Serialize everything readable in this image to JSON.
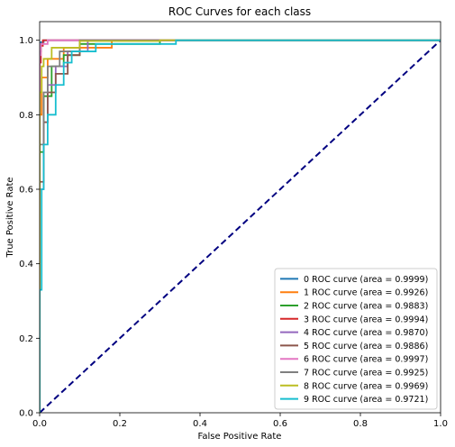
{
  "chart_data": {
    "type": "line",
    "title": "ROC Curves for each class",
    "xlabel": "False Positive Rate",
    "ylabel": "True Positive Rate",
    "xlim": [
      0.0,
      1.0
    ],
    "ylim": [
      0.0,
      1.05
    ],
    "xticks": [
      "0.0",
      "0.2",
      "0.4",
      "0.6",
      "0.8",
      "1.0"
    ],
    "yticks": [
      "0.0",
      "0.2",
      "0.4",
      "0.6",
      "0.8",
      "1.0"
    ],
    "grid": false,
    "legend_position": "lower-right",
    "diagonal": {
      "x": [
        0,
        1
      ],
      "y": [
        0,
        1
      ],
      "color": "#000080",
      "style": "dashed"
    },
    "series": [
      {
        "name": "0 ROC curve (area = 0.9999)",
        "color": "#1f77b4",
        "x": [
          0,
          0,
          0.003,
          0.003,
          0.01,
          0.01,
          1
        ],
        "y": [
          0,
          0.97,
          0.97,
          0.995,
          0.995,
          1.0,
          1.0
        ]
      },
      {
        "name": "1 ROC curve (area = 0.9926)",
        "color": "#ff7f0e",
        "x": [
          0,
          0,
          0.005,
          0.005,
          0.02,
          0.02,
          0.06,
          0.06,
          0.18,
          0.18,
          1
        ],
        "y": [
          0,
          0.8,
          0.8,
          0.9,
          0.9,
          0.95,
          0.95,
          0.98,
          0.98,
          1.0,
          1.0
        ]
      },
      {
        "name": "2 ROC curve (area = 0.9883)",
        "color": "#2ca02c",
        "x": [
          0,
          0,
          0.01,
          0.01,
          0.03,
          0.03,
          0.06,
          0.06,
          0.1,
          0.1,
          0.3,
          0.3,
          1
        ],
        "y": [
          0,
          0.7,
          0.7,
          0.85,
          0.85,
          0.93,
          0.93,
          0.96,
          0.96,
          0.99,
          0.99,
          1.0,
          1.0
        ]
      },
      {
        "name": "3 ROC curve (area = 0.9994)",
        "color": "#d62728",
        "x": [
          0,
          0,
          0.003,
          0.003,
          0.008,
          0.008,
          1
        ],
        "y": [
          0,
          0.94,
          0.94,
          0.985,
          0.985,
          1.0,
          1.0
        ]
      },
      {
        "name": "4 ROC curve (area = 0.9870)",
        "color": "#9467bd",
        "x": [
          0,
          0,
          0.01,
          0.01,
          0.02,
          0.02,
          0.04,
          0.04,
          0.07,
          0.07,
          0.12,
          0.12,
          1
        ],
        "y": [
          0,
          0.6,
          0.6,
          0.78,
          0.78,
          0.88,
          0.88,
          0.93,
          0.93,
          0.97,
          0.97,
          1.0,
          1.0
        ]
      },
      {
        "name": "5 ROC curve (area = 0.9886)",
        "color": "#8c564b",
        "x": [
          0,
          0,
          0.01,
          0.01,
          0.02,
          0.02,
          0.04,
          0.04,
          0.07,
          0.07,
          0.1,
          0.1,
          1
        ],
        "y": [
          0,
          0.62,
          0.62,
          0.78,
          0.78,
          0.86,
          0.86,
          0.91,
          0.91,
          0.96,
          0.96,
          1.0,
          1.0
        ]
      },
      {
        "name": "6 ROC curve (area = 0.9997)",
        "color": "#e377c2",
        "x": [
          0,
          0,
          0.003,
          0.003,
          0.02,
          0.02,
          1
        ],
        "y": [
          0,
          0.96,
          0.96,
          0.99,
          0.99,
          1.0,
          1.0
        ]
      },
      {
        "name": "7 ROC curve (area = 0.9925)",
        "color": "#7f7f7f",
        "x": [
          0,
          0,
          0.01,
          0.01,
          0.02,
          0.02,
          0.05,
          0.05,
          0.1,
          0.1,
          1
        ],
        "y": [
          0,
          0.72,
          0.72,
          0.86,
          0.86,
          0.93,
          0.93,
          0.97,
          0.97,
          1.0,
          1.0
        ]
      },
      {
        "name": "8 ROC curve (area = 0.9969)",
        "color": "#bcbd22",
        "x": [
          0,
          0,
          0.005,
          0.005,
          0.01,
          0.01,
          0.03,
          0.03,
          0.1,
          0.1,
          0.3,
          0.3,
          1
        ],
        "y": [
          0,
          0.86,
          0.86,
          0.93,
          0.93,
          0.95,
          0.95,
          0.98,
          0.98,
          0.998,
          0.998,
          1.0,
          1.0
        ]
      },
      {
        "name": "9 ROC curve (area = 0.9721)",
        "color": "#17becf",
        "x": [
          0,
          0,
          0.005,
          0.005,
          0.01,
          0.01,
          0.02,
          0.02,
          0.04,
          0.04,
          0.06,
          0.06,
          0.08,
          0.08,
          0.14,
          0.14,
          0.34,
          0.34,
          1
        ],
        "y": [
          0,
          0.33,
          0.33,
          0.6,
          0.6,
          0.72,
          0.72,
          0.8,
          0.8,
          0.88,
          0.88,
          0.94,
          0.94,
          0.97,
          0.97,
          0.99,
          0.99,
          1.0,
          1.0
        ]
      }
    ]
  }
}
